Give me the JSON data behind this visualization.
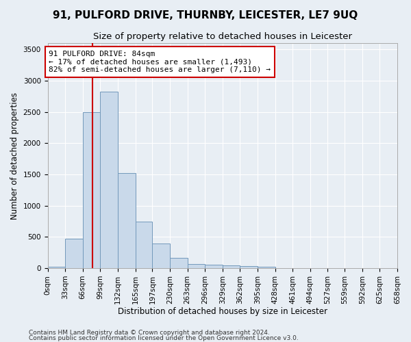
{
  "title": "91, PULFORD DRIVE, THURNBY, LEICESTER, LE7 9UQ",
  "subtitle": "Size of property relative to detached houses in Leicester",
  "xlabel": "Distribution of detached houses by size in Leicester",
  "ylabel": "Number of detached properties",
  "bin_edges": [
    0,
    33,
    66,
    99,
    132,
    165,
    197,
    230,
    263,
    296,
    329,
    362,
    395,
    428,
    461,
    494,
    527,
    559,
    592,
    625,
    658
  ],
  "bar_values": [
    20,
    470,
    2500,
    2820,
    1520,
    740,
    390,
    160,
    70,
    55,
    40,
    30,
    20,
    0,
    0,
    0,
    0,
    0,
    0,
    0
  ],
  "bar_color": "#c9d9ea",
  "bar_edge_color": "#7399bb",
  "property_size": 84,
  "red_line_color": "#cc0000",
  "annotation_line1": "91 PULFORD DRIVE: 84sqm",
  "annotation_line2": "← 17% of detached houses are smaller (1,493)",
  "annotation_line3": "82% of semi-detached houses are larger (7,110) →",
  "annotation_box_color": "#ffffff",
  "annotation_box_edge": "#cc0000",
  "ylim": [
    0,
    3600
  ],
  "yticks": [
    0,
    500,
    1000,
    1500,
    2000,
    2500,
    3000,
    3500
  ],
  "footer1": "Contains HM Land Registry data © Crown copyright and database right 2024.",
  "footer2": "Contains public sector information licensed under the Open Government Licence v3.0.",
  "bg_color": "#e8eef4",
  "plot_bg_color": "#e8eef4",
  "grid_color": "#ffffff",
  "title_fontsize": 11,
  "subtitle_fontsize": 9.5,
  "axis_label_fontsize": 8.5,
  "tick_fontsize": 7.5,
  "annotation_fontsize": 8,
  "footer_fontsize": 6.5
}
